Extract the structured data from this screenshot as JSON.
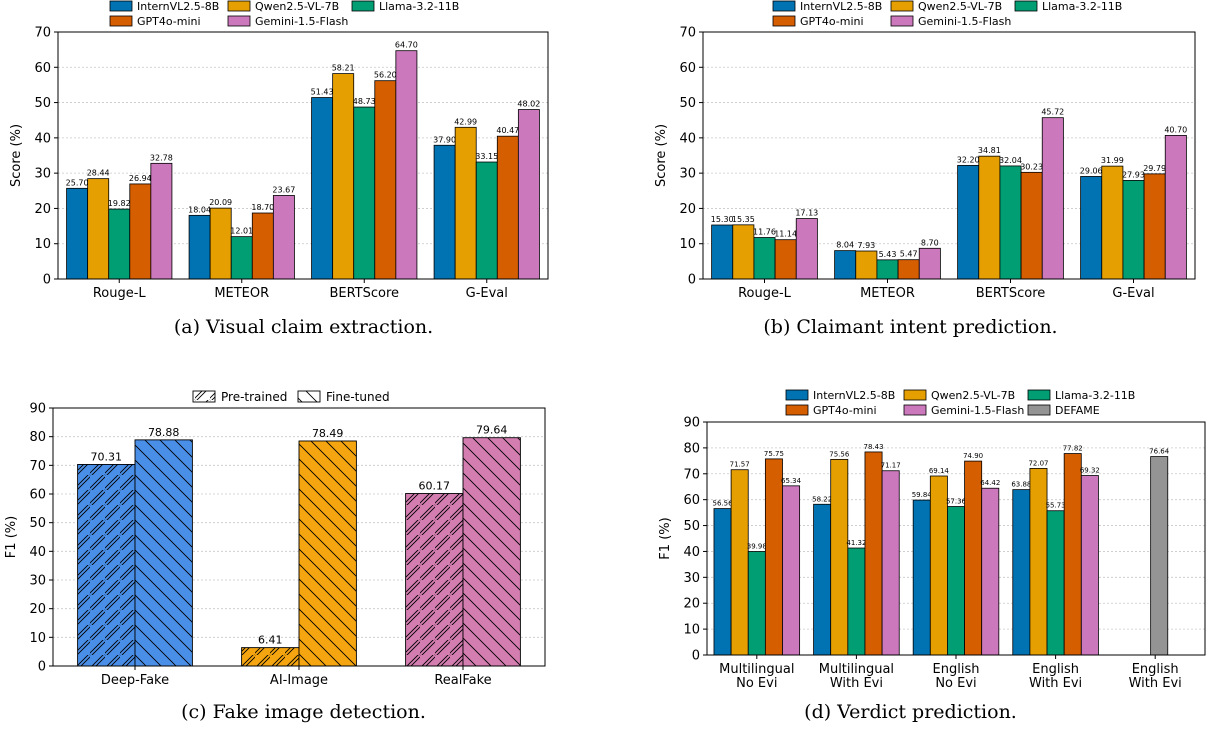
{
  "chart_data": [
    {
      "id": "a",
      "type": "bar",
      "caption": "(a) Visual claim extraction.",
      "ylabel": "Score (%)",
      "ylim": [
        0,
        70
      ],
      "yticks": [
        0,
        10,
        20,
        30,
        40,
        50,
        60,
        70
      ],
      "grid": true,
      "legend_position": "top-center",
      "categories": [
        "Rouge-L",
        "METEOR",
        "BERTScore",
        "G-Eval"
      ],
      "series": [
        {
          "name": "InternVL2.5-8B",
          "color": "#0173b2",
          "values": [
            25.7,
            18.04,
            51.43,
            37.9
          ],
          "labels": [
            "25.70",
            "18.04",
            "51.43",
            "37.90"
          ]
        },
        {
          "name": "Qwen2.5-VL-7B",
          "color": "#e69f00",
          "values": [
            28.44,
            20.09,
            58.21,
            42.99
          ],
          "labels": [
            "28.44",
            "20.09",
            "58.21",
            "42.99"
          ]
        },
        {
          "name": "Llama-3.2-11B",
          "color": "#029e73",
          "values": [
            19.82,
            12.01,
            48.73,
            33.15
          ],
          "labels": [
            "19.82",
            "12.01",
            "48.73",
            "33.15"
          ]
        },
        {
          "name": "GPT4o-mini",
          "color": "#d55e00",
          "values": [
            26.94,
            18.7,
            56.2,
            40.47
          ],
          "labels": [
            "26.94",
            "18.70",
            "56.20",
            "40.47"
          ]
        },
        {
          "name": "Gemini-1.5-Flash",
          "color": "#cc78bc",
          "values": [
            32.78,
            23.67,
            64.7,
            48.02
          ],
          "labels": [
            "32.78",
            "23.67",
            "64.70",
            "48.02"
          ]
        }
      ]
    },
    {
      "id": "b",
      "type": "bar",
      "caption": "(b) Claimant intent prediction.",
      "ylabel": "Score (%)",
      "ylim": [
        0,
        70
      ],
      "yticks": [
        0,
        10,
        20,
        30,
        40,
        50,
        60,
        70
      ],
      "grid": true,
      "legend_position": "top-center",
      "categories": [
        "Rouge-L",
        "METEOR",
        "BERTScore",
        "G-Eval"
      ],
      "series": [
        {
          "name": "InternVL2.5-8B",
          "color": "#0173b2",
          "values": [
            15.3,
            8.04,
            32.2,
            29.06
          ],
          "labels": [
            "15.30",
            "8.04",
            "32.20",
            "29.06"
          ]
        },
        {
          "name": "Qwen2.5-VL-7B",
          "color": "#e69f00",
          "values": [
            15.35,
            7.93,
            34.81,
            31.99
          ],
          "labels": [
            "15.35",
            "7.93",
            "34.81",
            "31.99"
          ]
        },
        {
          "name": "Llama-3.2-11B",
          "color": "#029e73",
          "values": [
            11.76,
            5.43,
            32.04,
            27.93
          ],
          "labels": [
            "11.76",
            "5.43",
            "32.04",
            "27.93"
          ]
        },
        {
          "name": "GPT4o-mini",
          "color": "#d55e00",
          "values": [
            11.14,
            5.47,
            30.23,
            29.79
          ],
          "labels": [
            "11.14",
            "5.47",
            "30.23",
            "29.79"
          ]
        },
        {
          "name": "Gemini-1.5-Flash",
          "color": "#cc78bc",
          "values": [
            17.13,
            8.7,
            45.72,
            40.7
          ],
          "labels": [
            "17.13",
            "8.70",
            "45.72",
            "40.70"
          ]
        }
      ]
    },
    {
      "id": "c",
      "type": "bar",
      "caption": "(c) Fake image detection.",
      "ylabel": "F1 (%)",
      "ylim": [
        0,
        90
      ],
      "yticks": [
        0,
        10,
        20,
        30,
        40,
        50,
        60,
        70,
        80,
        90
      ],
      "grid": true,
      "legend_position": "top-center",
      "legend": [
        {
          "name": "Pre-trained",
          "hatch": "forward"
        },
        {
          "name": "Fine-tuned",
          "hatch": "back"
        }
      ],
      "categories": [
        "Deep-Fake",
        "AI-Image",
        "RealFake"
      ],
      "colors": [
        "#4a8fe7",
        "#f5a50f",
        "#d47db1"
      ],
      "series": [
        {
          "name": "Pre-trained",
          "values": [
            70.31,
            6.41,
            60.17
          ],
          "labels": [
            "70.31",
            "6.41",
            "60.17"
          ]
        },
        {
          "name": "Fine-tuned",
          "values": [
            78.88,
            78.49,
            79.64
          ],
          "labels": [
            "78.88",
            "78.49",
            "79.64"
          ]
        }
      ]
    },
    {
      "id": "d",
      "type": "bar",
      "caption": "(d) Verdict prediction.",
      "ylabel": "F1 (%)",
      "ylim": [
        0,
        90
      ],
      "yticks": [
        0,
        10,
        20,
        30,
        40,
        50,
        60,
        70,
        80,
        90
      ],
      "grid": true,
      "legend_position": "top-center",
      "categories": [
        [
          "Multilingual",
          "No Evi"
        ],
        [
          "Multilingual",
          "With Evi"
        ],
        [
          "English",
          "No Evi"
        ],
        [
          "English",
          "With Evi"
        ],
        [
          "English",
          "With Evi"
        ]
      ],
      "series": [
        {
          "name": "InternVL2.5-8B",
          "color": "#0173b2",
          "values": [
            56.56,
            58.22,
            59.84,
            63.88,
            null
          ],
          "labels": [
            "56.56",
            "58.22",
            "59.84",
            "63.88",
            ""
          ]
        },
        {
          "name": "Qwen2.5-VL-7B",
          "color": "#e69f00",
          "values": [
            71.57,
            75.56,
            69.14,
            72.07,
            null
          ],
          "labels": [
            "71.57",
            "75.56",
            "69.14",
            "72.07",
            ""
          ]
        },
        {
          "name": "Llama-3.2-11B",
          "color": "#029e73",
          "values": [
            39.98,
            41.32,
            57.36,
            55.73,
            null
          ],
          "labels": [
            "39.98",
            "41.32",
            "57.36",
            "55.73",
            ""
          ]
        },
        {
          "name": "GPT4o-mini",
          "color": "#d55e00",
          "values": [
            75.75,
            78.43,
            74.9,
            77.82,
            null
          ],
          "labels": [
            "75.75",
            "78.43",
            "74.90",
            "77.82",
            ""
          ]
        },
        {
          "name": "Gemini-1.5-Flash",
          "color": "#cc78bc",
          "values": [
            65.34,
            71.17,
            64.42,
            69.32,
            null
          ],
          "labels": [
            "65.34",
            "71.17",
            "64.42",
            "69.32",
            ""
          ]
        },
        {
          "name": "DEFAME",
          "color": "#949494",
          "values": [
            null,
            null,
            null,
            null,
            76.64
          ],
          "labels": [
            "",
            "",
            "",
            "",
            "76.64"
          ]
        }
      ]
    }
  ]
}
